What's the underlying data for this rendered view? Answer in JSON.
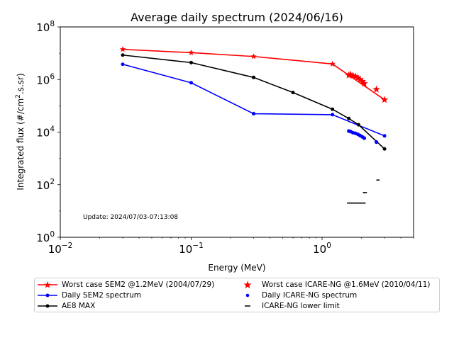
{
  "chart_data": {
    "type": "line",
    "title": "Average daily spectrum (2024/06/16)",
    "xlabel": "Energy (MeV)",
    "ylabel": "Integrated flux (#/cm².s.sr)",
    "xscale": "log",
    "yscale": "log",
    "xlim": [
      0.01,
      5
    ],
    "ylim": [
      1,
      100000000
    ],
    "x_ticks": [
      {
        "value": 0.01,
        "base": "10",
        "exp": "−2"
      },
      {
        "value": 0.1,
        "base": "10",
        "exp": "−1"
      },
      {
        "value": 1,
        "base": "10",
        "exp": "0"
      }
    ],
    "y_ticks": [
      {
        "value": 1,
        "base": "10",
        "exp": "0"
      },
      {
        "value": 100,
        "base": "10",
        "exp": "2"
      },
      {
        "value": 10000,
        "base": "10",
        "exp": "4"
      },
      {
        "value": 1000000,
        "base": "10",
        "exp": "6"
      },
      {
        "value": 100000000,
        "base": "10",
        "exp": "8"
      }
    ],
    "annotation": "Update: 2024/07/03-07:13:08",
    "grid": false,
    "legend_position": "bottom",
    "series": [
      {
        "name": "Worst case SEM2 @1.2MeV (2004/07/29)",
        "style": "line-star",
        "color": "#ff0000",
        "x": [
          0.03,
          0.1,
          0.3,
          1.2,
          3.0
        ],
        "y": [
          14000000,
          10500000,
          7500000,
          3900000,
          170000
        ]
      },
      {
        "name": "Daily SEM2 spectrum",
        "style": "line-dot",
        "color": "#0000ff",
        "x": [
          0.03,
          0.1,
          0.3,
          1.2,
          3.0
        ],
        "y": [
          3800000,
          750000,
          50000,
          46000,
          7200
        ]
      },
      {
        "name": "AE8 MAX",
        "style": "line-dot",
        "color": "#000000",
        "x": [
          0.03,
          0.1,
          0.3,
          0.6,
          1.2,
          1.6,
          1.9,
          3.0
        ],
        "y": [
          8500000,
          4400000,
          1200000,
          320000,
          74000,
          33000,
          19000,
          2300
        ]
      },
      {
        "name": "Worst case ICARE-NG @1.6MeV (2010/04/11)",
        "style": "star",
        "color": "#ff0000",
        "x": [
          1.6,
          1.65,
          1.72,
          1.8,
          1.88,
          1.95,
          2.03,
          2.1,
          2.6,
          3.0
        ],
        "y": [
          1450000,
          1550000,
          1400000,
          1300000,
          1150000,
          1000000,
          850000,
          700000,
          420000,
          170000
        ]
      },
      {
        "name": "Daily ICARE-NG spectrum",
        "style": "dot",
        "color": "#0000ff",
        "x": [
          1.6,
          1.65,
          1.72,
          1.8,
          1.88,
          1.95,
          2.03,
          2.1,
          2.6
        ],
        "y": [
          11000,
          10500,
          9500,
          9000,
          8200,
          7400,
          6600,
          5900,
          4200
        ]
      },
      {
        "name": "ICARE-NG lower limit",
        "style": "hline",
        "color": "#000000",
        "segments": [
          {
            "x": [
              1.55,
              2.15
            ],
            "y": 20
          },
          {
            "x": [
              2.05,
              2.2
            ],
            "y": 50
          },
          {
            "x": [
              2.6,
              2.75
            ],
            "y": 150
          }
        ]
      }
    ]
  }
}
